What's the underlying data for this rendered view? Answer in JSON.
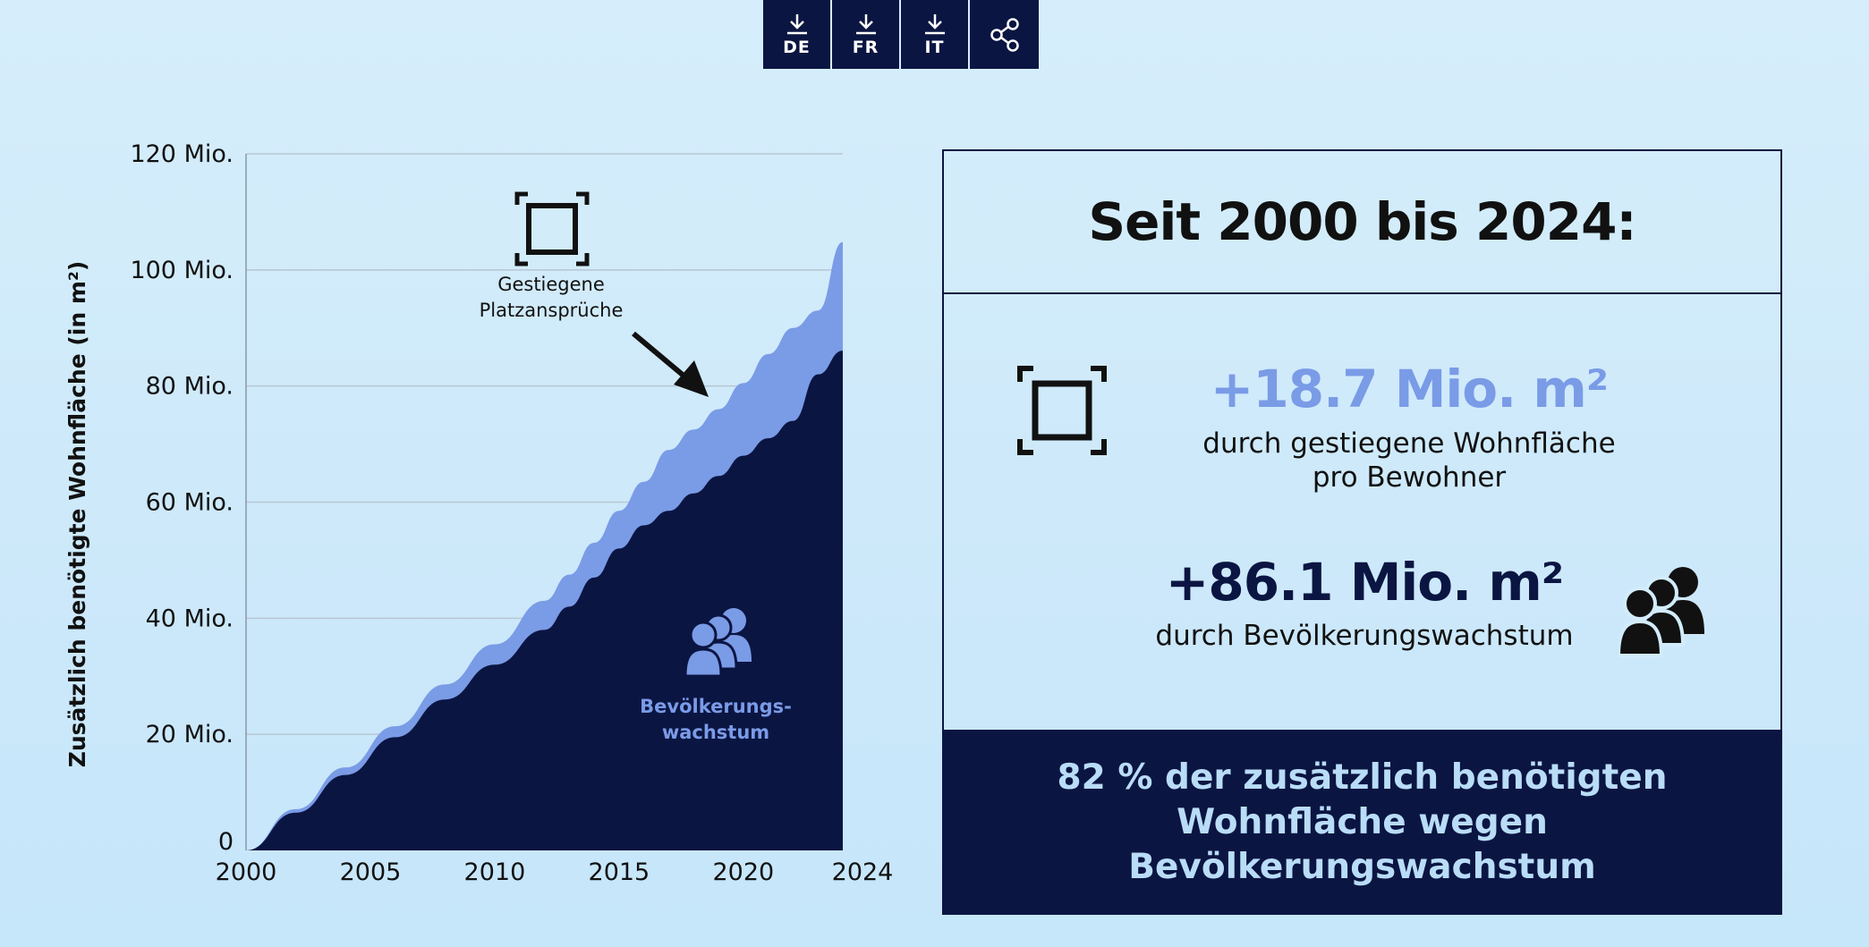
{
  "toolbar": {
    "buttons": [
      {
        "label": "DE",
        "icon": "download-icon"
      },
      {
        "label": "FR",
        "icon": "download-icon"
      },
      {
        "label": "IT",
        "icon": "download-icon"
      },
      {
        "label": "",
        "icon": "share-icon"
      }
    ]
  },
  "chart_data": {
    "type": "area",
    "stacked": true,
    "title": "",
    "ylabel": "Zusätzlich benötigte Wohnfläche (in m²)",
    "xlabel": "",
    "x": [
      2000,
      2002,
      2004,
      2006,
      2008,
      2010,
      2012,
      2013,
      2014,
      2015,
      2016,
      2017,
      2018,
      2019,
      2020,
      2021,
      2022,
      2023,
      2024
    ],
    "xlim": [
      2000,
      2024
    ],
    "ylim": [
      0,
      120
    ],
    "xticks": [
      "2000",
      "2005",
      "2010",
      "2015",
      "2020",
      "2024"
    ],
    "xtick_values": [
      2000,
      2005,
      2010,
      2015,
      2020,
      2024
    ],
    "yticks": [
      "0",
      "20 Mio.",
      "40 Mio.",
      "60 Mio.",
      "80 Mio.",
      "100 Mio.",
      "120 Mio."
    ],
    "ytick_values": [
      0,
      20,
      40,
      60,
      80,
      100,
      120
    ],
    "grid": true,
    "series": [
      {
        "name": "Bevölkerungswachstum",
        "color": "#0b1542",
        "values": [
          0,
          6.5,
          13,
          19.5,
          26,
          32,
          38,
          42,
          47,
          52,
          56,
          58.5,
          61.5,
          64.5,
          68,
          71,
          74,
          82,
          86.1
        ]
      },
      {
        "name": "Gestiegene Platzansprüche",
        "color": "#7a9be6",
        "values": [
          0,
          0.6,
          1.3,
          1.9,
          2.6,
          3.5,
          5,
          5.5,
          6,
          6.5,
          7.5,
          10.5,
          11,
          11.5,
          12.5,
          14.5,
          16,
          11,
          18.7
        ]
      }
    ],
    "annotations": [
      {
        "text_lines": [
          "Gestiegene",
          "Platzansprüche"
        ],
        "icon": "area-frame-icon"
      },
      {
        "text_lines": [
          "Bevölkerungs-",
          "wachstum"
        ],
        "icon": "people-group-icon"
      }
    ]
  },
  "infobox": {
    "title": "Seit 2000 bis 2024:",
    "stat1": {
      "value": "+18.7 Mio. m²",
      "desc_line1": "durch gestiegene Wohnfläche",
      "desc_line2": "pro Bewohner",
      "icon": "area-frame-icon"
    },
    "stat2": {
      "value": "+86.1 Mio. m²",
      "desc": "durch Bevölkerungswachstum",
      "icon": "people-group-icon"
    },
    "footer": "82 % der zusätzlich benötigten Wohnfläche wegen Bevölkerungswachstum"
  },
  "colors": {
    "navy": "#0b1542",
    "blue": "#7a9be6",
    "background": "#d2ecfb"
  }
}
